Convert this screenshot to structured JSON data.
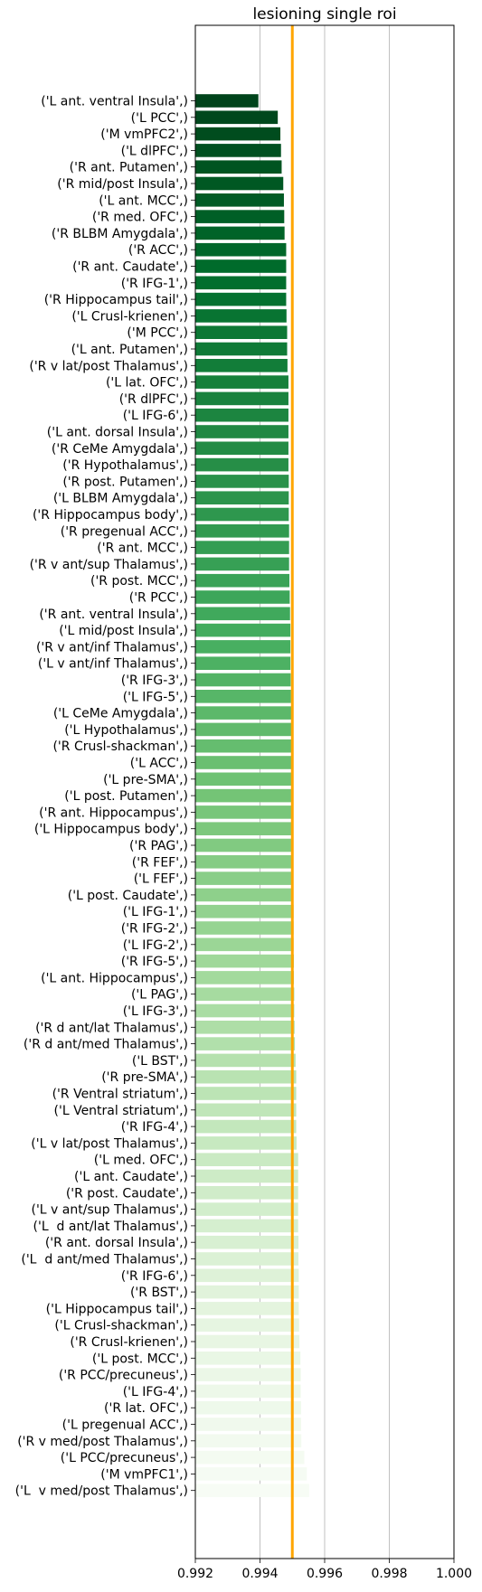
{
  "chart_data": {
    "type": "bar",
    "orientation": "horizontal",
    "title": "lesioning single roi",
    "xlabel": "",
    "ylabel": "",
    "xlim": [
      0.992,
      1.0
    ],
    "xticks": [
      0.992,
      0.994,
      0.996,
      0.998,
      1.0
    ],
    "xtick_labels": [
      "0.992",
      "0.994",
      "0.996",
      "0.998",
      "1.000"
    ],
    "grid": "x-only",
    "colormap": "Greens",
    "reference_line": {
      "x": 0.995,
      "color": "#ffa500"
    },
    "categories": [
      "('L ant. ventral Insula',)",
      "('L PCC',)",
      "('M vmPFC2',)",
      "('L dlPFC',)",
      "('R ant. Putamen',)",
      "('R mid/post Insula',)",
      "('L ant. MCC',)",
      "('R med. OFC',)",
      "('R BLBM Amygdala',)",
      "('R ACC',)",
      "('R ant. Caudate',)",
      "('R IFG-1',)",
      "('R Hippocampus tail',)",
      "('L Crusl-krienen',)",
      "('M PCC',)",
      "('L ant. Putamen',)",
      "('R v lat/post Thalamus',)",
      "('L lat. OFC',)",
      "('R dlPFC',)",
      "('L IFG-6',)",
      "('L ant. dorsal Insula',)",
      "('R CeMe Amygdala',)",
      "('R Hypothalamus',)",
      "('R post. Putamen',)",
      "('L BLBM Amygdala',)",
      "('R Hippocampus body',)",
      "('R pregenual ACC',)",
      "('R ant. MCC',)",
      "('R v ant/sup Thalamus',)",
      "('R post. MCC',)",
      "('R PCC',)",
      "('R ant. ventral Insula',)",
      "('L mid/post Insula',)",
      "('R v ant/inf Thalamus',)",
      "('L v ant/inf Thalamus',)",
      "('R IFG-3',)",
      "('L IFG-5',)",
      "('L CeMe Amygdala',)",
      "('L Hypothalamus',)",
      "('R Crusl-shackman',)",
      "('L ACC',)",
      "('L pre-SMA',)",
      "('L post. Putamen',)",
      "('R ant. Hippocampus',)",
      "('L Hippocampus body',)",
      "('R PAG',)",
      "('R FEF',)",
      "('L FEF',)",
      "('L post. Caudate',)",
      "('L IFG-1',)",
      "('R IFG-2',)",
      "('L IFG-2',)",
      "('R IFG-5',)",
      "('L ant. Hippocampus',)",
      "('L PAG',)",
      "('L IFG-3',)",
      "('R d ant/lat Thalamus',)",
      "('R d ant/med Thalamus',)",
      "('L BST',)",
      "('R pre-SMA',)",
      "('R Ventral striatum',)",
      "('L Ventral striatum',)",
      "('R IFG-4',)",
      "('L v lat/post Thalamus',)",
      "('L med. OFC',)",
      "('L ant. Caudate',)",
      "('R post. Caudate',)",
      "('L v ant/sup Thalamus',)",
      "('L  d ant/lat Thalamus',)",
      "('R ant. dorsal Insula',)",
      "('L  d ant/med Thalamus',)",
      "('R IFG-6',)",
      "('R BST',)",
      "('L Hippocampus tail',)",
      "('L Crusl-shackman',)",
      "('R Crusl-krienen',)",
      "('L post. MCC',)",
      "('R PCC/precuneus',)",
      "('L IFG-4',)",
      "('R lat. OFC',)",
      "('L pregenual ACC',)",
      "('R v med/post Thalamus',)",
      "('L PCC/precuneus',)",
      "('M vmPFC1',)",
      "('L  v med/post Thalamus',)"
    ],
    "values": [
      0.99395,
      0.99455,
      0.99463,
      0.99465,
      0.99467,
      0.99472,
      0.99474,
      0.99475,
      0.99476,
      0.99481,
      0.99481,
      0.99481,
      0.99481,
      0.99482,
      0.99484,
      0.99484,
      0.99485,
      0.99488,
      0.99488,
      0.99488,
      0.99488,
      0.99488,
      0.99488,
      0.99489,
      0.99489,
      0.99489,
      0.9949,
      0.9949,
      0.9949,
      0.99491,
      0.99492,
      0.99493,
      0.99494,
      0.99494,
      0.99494,
      0.99495,
      0.99496,
      0.99497,
      0.99497,
      0.99498,
      0.99499,
      0.995,
      0.995,
      0.99501,
      0.99501,
      0.99502,
      0.99503,
      0.99503,
      0.99503,
      0.99504,
      0.99504,
      0.99504,
      0.99505,
      0.99505,
      0.99506,
      0.99506,
      0.99507,
      0.99508,
      0.9951,
      0.99512,
      0.99512,
      0.99512,
      0.99512,
      0.99513,
      0.99518,
      0.99518,
      0.99518,
      0.99518,
      0.99518,
      0.99519,
      0.99519,
      0.9952,
      0.9952,
      0.9952,
      0.99521,
      0.99522,
      0.99525,
      0.99526,
      0.99526,
      0.99527,
      0.99527,
      0.99528,
      0.99537,
      0.99545,
      0.99552
    ]
  }
}
